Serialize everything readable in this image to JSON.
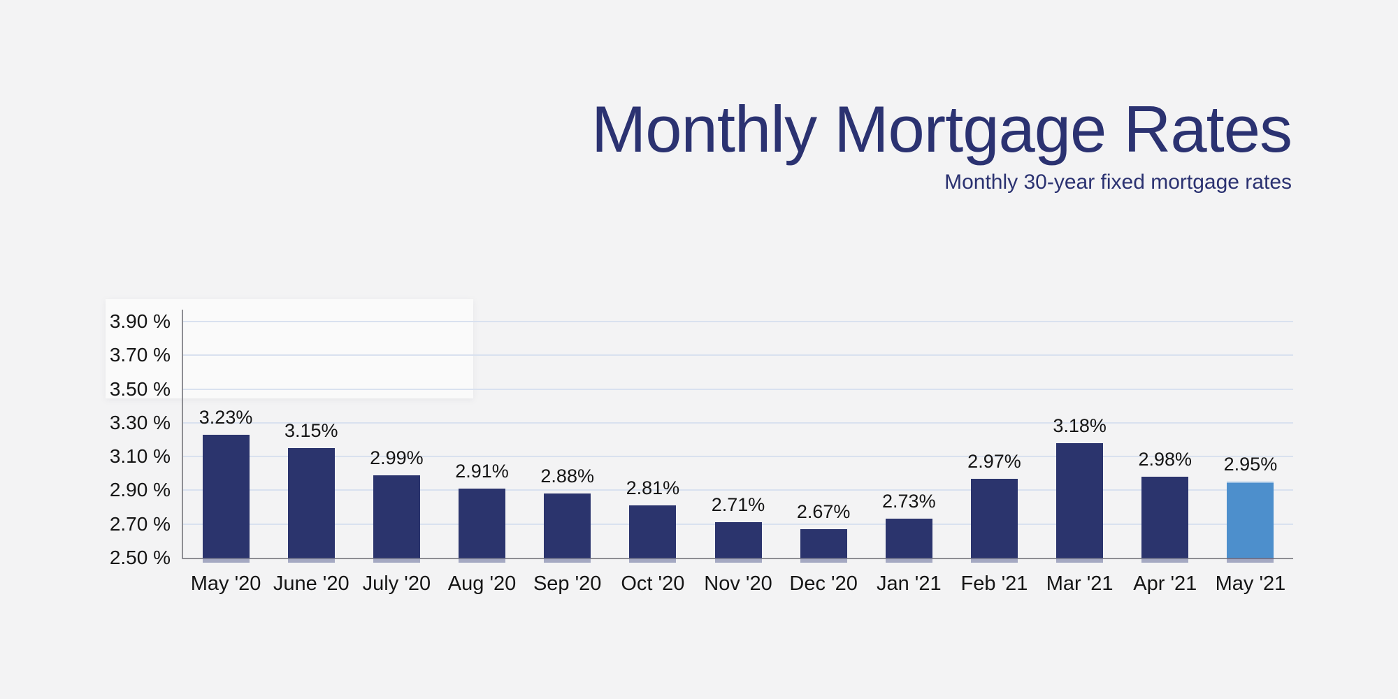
{
  "page": {
    "background": "#f3f3f4"
  },
  "chart_data": {
    "type": "bar",
    "title": "Monthly Mortgage Rates",
    "subtitle": "Monthly 30-year fixed mortgage rates",
    "xlabel": "",
    "ylabel": "",
    "categories": [
      "May '20",
      "June '20",
      "July '20",
      "Aug '20",
      "Sep '20",
      "Oct '20",
      "Nov '20",
      "Dec '20",
      "Jan '21",
      "Feb '21",
      "Mar '21",
      "Apr '21",
      "May '21"
    ],
    "values": [
      3.23,
      3.15,
      2.99,
      2.91,
      2.88,
      2.81,
      2.71,
      2.67,
      2.73,
      2.97,
      3.18,
      2.98,
      2.95
    ],
    "value_labels": [
      "3.23%",
      "3.15%",
      "2.99%",
      "2.91%",
      "2.88%",
      "2.81%",
      "2.71%",
      "2.67%",
      "2.73%",
      "2.97%",
      "3.18%",
      "2.98%",
      "2.95%"
    ],
    "highlight_index": 12,
    "ylim": [
      2.5,
      3.9
    ],
    "ytick_step": 0.2,
    "yticks": [
      {
        "value": 3.9,
        "label": "3.90 %"
      },
      {
        "value": 3.7,
        "label": "3.70 %"
      },
      {
        "value": 3.5,
        "label": "3.50 %"
      },
      {
        "value": 3.3,
        "label": "3.30 %"
      },
      {
        "value": 3.1,
        "label": "3.10 %"
      },
      {
        "value": 2.9,
        "label": "2.90 %"
      },
      {
        "value": 2.7,
        "label": "2.70 %"
      },
      {
        "value": 2.5,
        "label": "2.50 %"
      }
    ],
    "grid": true,
    "legend": false,
    "colors": {
      "bar": "#2b346d",
      "bar_highlight": "#4d8fcc",
      "title": "#2b3271",
      "label": "#151515",
      "gridline": "#d9e1ef",
      "axis": "#8e8e93",
      "background": "#f3f3f4",
      "highlight_panel": "rgba(255,255,255,0.55)"
    }
  }
}
